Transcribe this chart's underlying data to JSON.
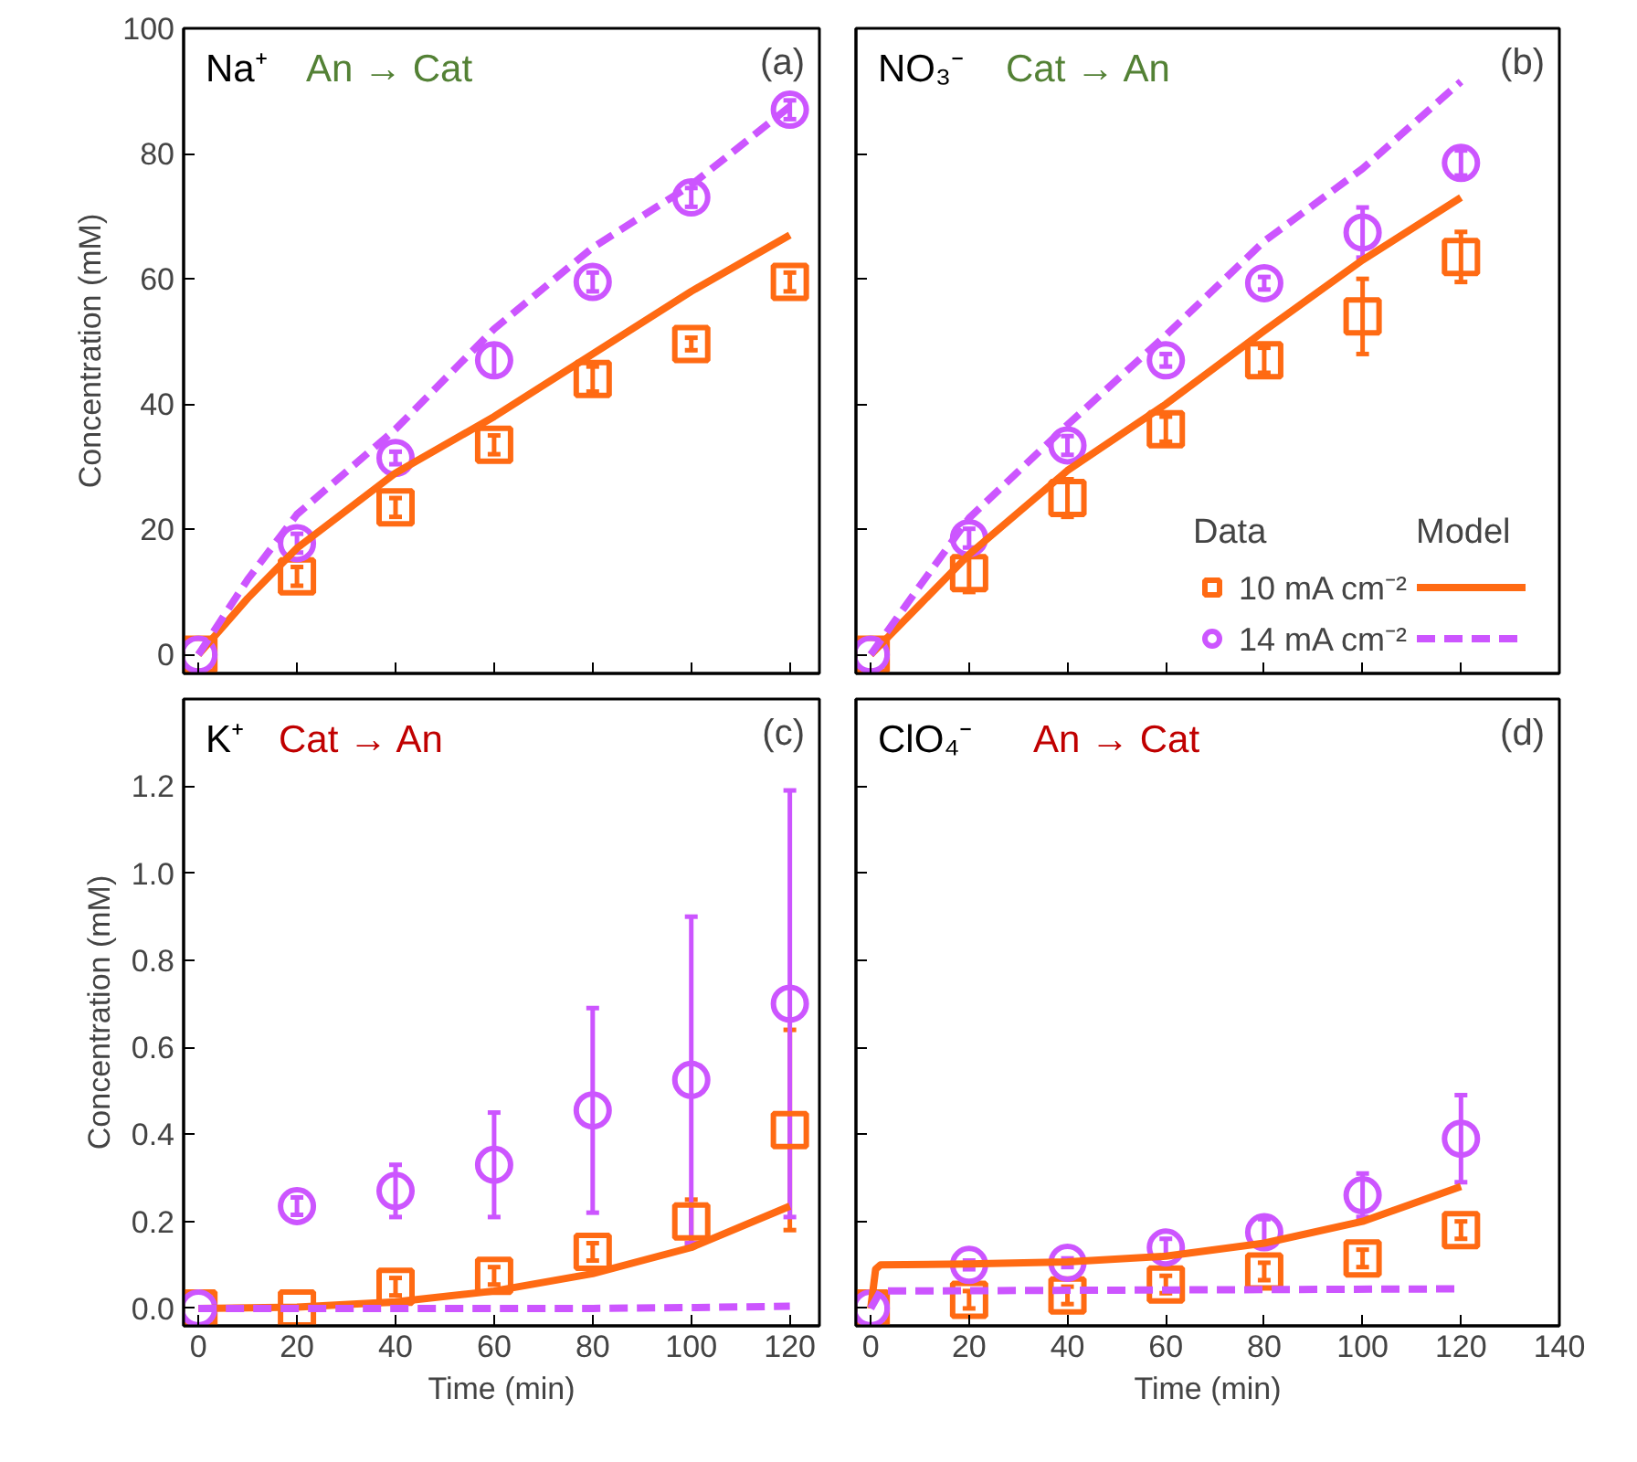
{
  "chart_data": [
    {
      "type": "scatter",
      "title": "Na⁺",
      "subtitle": "An → Cat",
      "ylabel": "Concentration (mM)",
      "annotations": [
        "(a)"
      ],
      "xlim": [
        -3,
        126
      ],
      "xticks": [
        0,
        20,
        40,
        60,
        80,
        100,
        120
      ],
      "ylim": [
        -3,
        100
      ],
      "yticks": [
        0,
        20,
        40,
        60,
        80,
        100
      ],
      "tick_labels": "y",
      "grid": false,
      "legend": false,
      "series": [
        {
          "marker": "square",
          "color": "#ff6a13",
          "x": [
            0,
            20,
            40,
            60,
            80,
            100,
            120
          ],
          "values": [
            0,
            12.5,
            23.5,
            33.5,
            44,
            49.6,
            59.5
          ],
          "errors": [
            null,
            1.5,
            1.5,
            1.5,
            2,
            1,
            1.5
          ]
        },
        {
          "marker": "circle",
          "color": "#cc55ff",
          "x": [
            0,
            20,
            40,
            60,
            80,
            100,
            120
          ],
          "values": [
            0,
            17.8,
            31.4,
            47,
            59.5,
            73,
            87
          ],
          "errors": [
            null,
            1.5,
            1,
            2.5,
            1.5,
            1.5,
            1.5
          ]
        },
        {
          "type": "line",
          "line_style": "solid",
          "color": "#ff6a13",
          "x": [
            0,
            10,
            20,
            40,
            60,
            80,
            100,
            120
          ],
          "values": [
            0,
            9,
            17,
            29,
            38,
            48,
            58,
            67
          ]
        },
        {
          "type": "line",
          "line_style": "dashed",
          "color": "#cc55ff",
          "x": [
            0,
            10,
            20,
            40,
            60,
            80,
            100,
            120
          ],
          "values": [
            0,
            12,
            22.4,
            36,
            52,
            65,
            75,
            87.5
          ]
        }
      ]
    },
    {
      "type": "scatter",
      "title": "NO₃⁻",
      "subtitle": "Cat → An",
      "annotations": [
        "(b)",
        "Data",
        "Model"
      ],
      "xlim": [
        -3,
        140
      ],
      "xticks": [
        0,
        20,
        40,
        60,
        80,
        100,
        120,
        140
      ],
      "ylim": [
        -3,
        100
      ],
      "yticks": [
        0,
        20,
        40,
        60,
        80,
        100
      ],
      "tick_labels": false,
      "grid": false,
      "legend": "bottom right",
      "series": [
        {
          "name": "10 mA cm⁻²",
          "marker": "square",
          "color": "#ff6a13",
          "x": [
            0,
            20,
            40,
            60,
            80,
            100,
            120
          ],
          "values": [
            0,
            13,
            25,
            36,
            47,
            54,
            63.5
          ],
          "errors": [
            null,
            3,
            3,
            2,
            2,
            6,
            4
          ]
        },
        {
          "name": "14 mA cm⁻²",
          "marker": "circle",
          "color": "#cc55ff",
          "x": [
            0,
            20,
            40,
            60,
            80,
            100,
            120
          ],
          "values": [
            0,
            18.6,
            33.4,
            47,
            59.3,
            67.4,
            78.5
          ],
          "errors": [
            null,
            1.5,
            1.5,
            1,
            1,
            4,
            2
          ]
        },
        {
          "type": "line",
          "line_style": "solid",
          "color": "#ff6a13",
          "x": [
            0,
            10,
            20,
            40,
            60,
            80,
            100,
            120
          ],
          "values": [
            0,
            8,
            16,
            29.4,
            40,
            51.7,
            63,
            73
          ]
        },
        {
          "type": "line",
          "line_style": "dashed",
          "color": "#cc55ff",
          "x": [
            0,
            10,
            20,
            40,
            60,
            80,
            100,
            120
          ],
          "values": [
            0,
            11,
            21.8,
            36.7,
            51,
            66,
            77.6,
            91.5
          ]
        }
      ]
    },
    {
      "type": "scatter",
      "title": "K⁺",
      "subtitle": "Cat → An",
      "xlabel": "Time (min)",
      "ylabel": "Concentration (mM)",
      "annotations": [
        "(c)"
      ],
      "xlim": [
        -3,
        126
      ],
      "xticks": [
        0,
        20,
        40,
        60,
        80,
        100,
        120
      ],
      "ylim": [
        -0.04,
        1.4
      ],
      "yticks": [
        {
          "value": 0,
          "label": "0.0"
        },
        {
          "value": 0.2,
          "label": "0.2"
        },
        {
          "value": 0.4,
          "label": "0.4"
        },
        {
          "value": 0.6,
          "label": "0.6"
        },
        {
          "value": 0.8,
          "label": "0.8"
        },
        {
          "value": 1,
          "label": "1.0"
        },
        {
          "value": 1.2,
          "label": "1.2"
        }
      ],
      "grid": false,
      "legend": false,
      "series": [
        {
          "marker": "square",
          "color": "#ff6a13",
          "x": [
            0,
            20,
            40,
            60,
            80,
            100,
            120
          ],
          "values": [
            0,
            0,
            0.05,
            0.075,
            0.13,
            0.2,
            0.41
          ],
          "errors": [
            null,
            null,
            0.02,
            0.02,
            0.02,
            0.05,
            [
              0.18,
              0.64
            ]
          ]
        },
        {
          "marker": "circle",
          "color": "#cc55ff",
          "x": [
            0,
            20,
            40,
            60,
            80,
            100,
            120
          ],
          "values": [
            0,
            0.235,
            0.27,
            0.33,
            0.455,
            0.525,
            0.7
          ],
          "errors": [
            null,
            0.02,
            [
              0.21,
              0.33
            ],
            [
              0.21,
              0.45
            ],
            [
              0.22,
              0.69
            ],
            [
              0.15,
              0.9
            ],
            [
              0.21,
              1.19
            ]
          ]
        },
        {
          "type": "line",
          "line_style": "solid",
          "color": "#ff6a13",
          "x": [
            0,
            20,
            40,
            60,
            80,
            100,
            120
          ],
          "values": [
            0,
            0.003,
            0.015,
            0.04,
            0.08,
            0.14,
            0.235
          ]
        },
        {
          "type": "line",
          "line_style": "dashed",
          "color": "#cc55ff",
          "x": [
            0,
            20,
            40,
            60,
            80,
            100,
            120
          ],
          "values": [
            0,
            0,
            0,
            0,
            0,
            0.002,
            0.005
          ]
        }
      ]
    },
    {
      "type": "scatter",
      "title": "ClO₄⁻",
      "subtitle": "An → Cat",
      "xlabel": "Time (min)",
      "annotations": [
        "(d)"
      ],
      "xlim": [
        -3,
        140
      ],
      "xticks": [
        0,
        20,
        40,
        60,
        80,
        100,
        120,
        140
      ],
      "ylim": [
        -0.04,
        1.4
      ],
      "yticks": [
        0,
        0.2,
        0.4,
        0.6,
        0.8,
        1,
        1.2
      ],
      "tick_labels": "x",
      "grid": false,
      "legend": false,
      "series": [
        {
          "marker": "square",
          "color": "#ff6a13",
          "x": [
            0,
            20,
            40,
            60,
            80,
            100,
            120
          ],
          "values": [
            0,
            0.02,
            0.03,
            0.055,
            0.085,
            0.115,
            0.18
          ],
          "errors": [
            null,
            0.02,
            0.02,
            0.02,
            0.02,
            0.02,
            0.02
          ]
        },
        {
          "marker": "circle",
          "color": "#cc55ff",
          "x": [
            0,
            20,
            40,
            60,
            80,
            100,
            120
          ],
          "values": [
            0,
            0.1,
            0.105,
            0.14,
            0.175,
            0.26,
            0.39
          ],
          "errors": [
            null,
            0.01,
            0.01,
            0.02,
            0.03,
            0.05,
            0.1
          ]
        },
        {
          "type": "line",
          "line_style": "solid",
          "color": "#ff6a13",
          "x": [
            0,
            1,
            2,
            20,
            40,
            60,
            80,
            100,
            120
          ],
          "values": [
            0,
            0.09,
            0.1,
            0.102,
            0.107,
            0.12,
            0.15,
            0.2,
            0.28
          ]
        },
        {
          "type": "line",
          "line_style": "dashed",
          "color": "#cc55ff",
          "x": [
            0,
            2,
            120
          ],
          "values": [
            0,
            0.04,
            0.045
          ]
        }
      ]
    }
  ]
}
